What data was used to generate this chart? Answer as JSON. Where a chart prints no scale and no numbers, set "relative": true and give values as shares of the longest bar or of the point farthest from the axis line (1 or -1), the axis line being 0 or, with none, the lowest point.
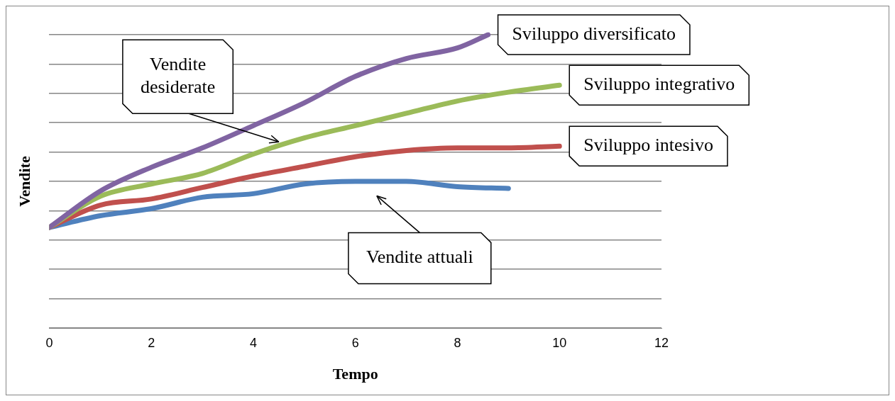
{
  "chart_data": {
    "type": "line",
    "relative": true,
    "xlabel": "Tempo",
    "ylabel": "Vendite",
    "xlim": [
      0,
      12
    ],
    "xticks": [
      0,
      2,
      4,
      6,
      8,
      10,
      12
    ],
    "grid": "y",
    "legend": false,
    "marker": "none",
    "line_style": "solid",
    "series": [
      {
        "name": "Sviluppo diversificato",
        "color": "#8064a2",
        "x": [
          0,
          1,
          2,
          3,
          4,
          5,
          6,
          7,
          8,
          8.6
        ],
        "values": [
          0.343,
          0.467,
          0.548,
          0.614,
          0.69,
          0.768,
          0.858,
          0.919,
          0.955,
          1
        ]
      },
      {
        "name": "Sviluppo integrativo",
        "color": "#9bbb59",
        "x": [
          0,
          1,
          2,
          3,
          4,
          5,
          6,
          7,
          8,
          9,
          10
        ],
        "values": [
          0.343,
          0.449,
          0.491,
          0.527,
          0.593,
          0.648,
          0.69,
          0.732,
          0.774,
          0.804,
          0.828
        ]
      },
      {
        "name": "Sviluppo intesivo",
        "color": "#c0504d",
        "x": [
          0,
          1,
          2,
          3,
          4,
          5,
          6,
          7,
          8,
          9,
          10
        ],
        "values": [
          0.343,
          0.419,
          0.44,
          0.479,
          0.518,
          0.551,
          0.584,
          0.605,
          0.614,
          0.614,
          0.62
        ]
      },
      {
        "color": "#4f81bd",
        "x": [
          0,
          1,
          2,
          3,
          4,
          5,
          6,
          7,
          8,
          9
        ],
        "values": [
          0.343,
          0.383,
          0.407,
          0.446,
          0.458,
          0.491,
          0.5,
          0.5,
          0.482,
          0.476
        ]
      }
    ],
    "annotations": [
      "Vendite desiderate",
      "Vendite attuali"
    ]
  }
}
